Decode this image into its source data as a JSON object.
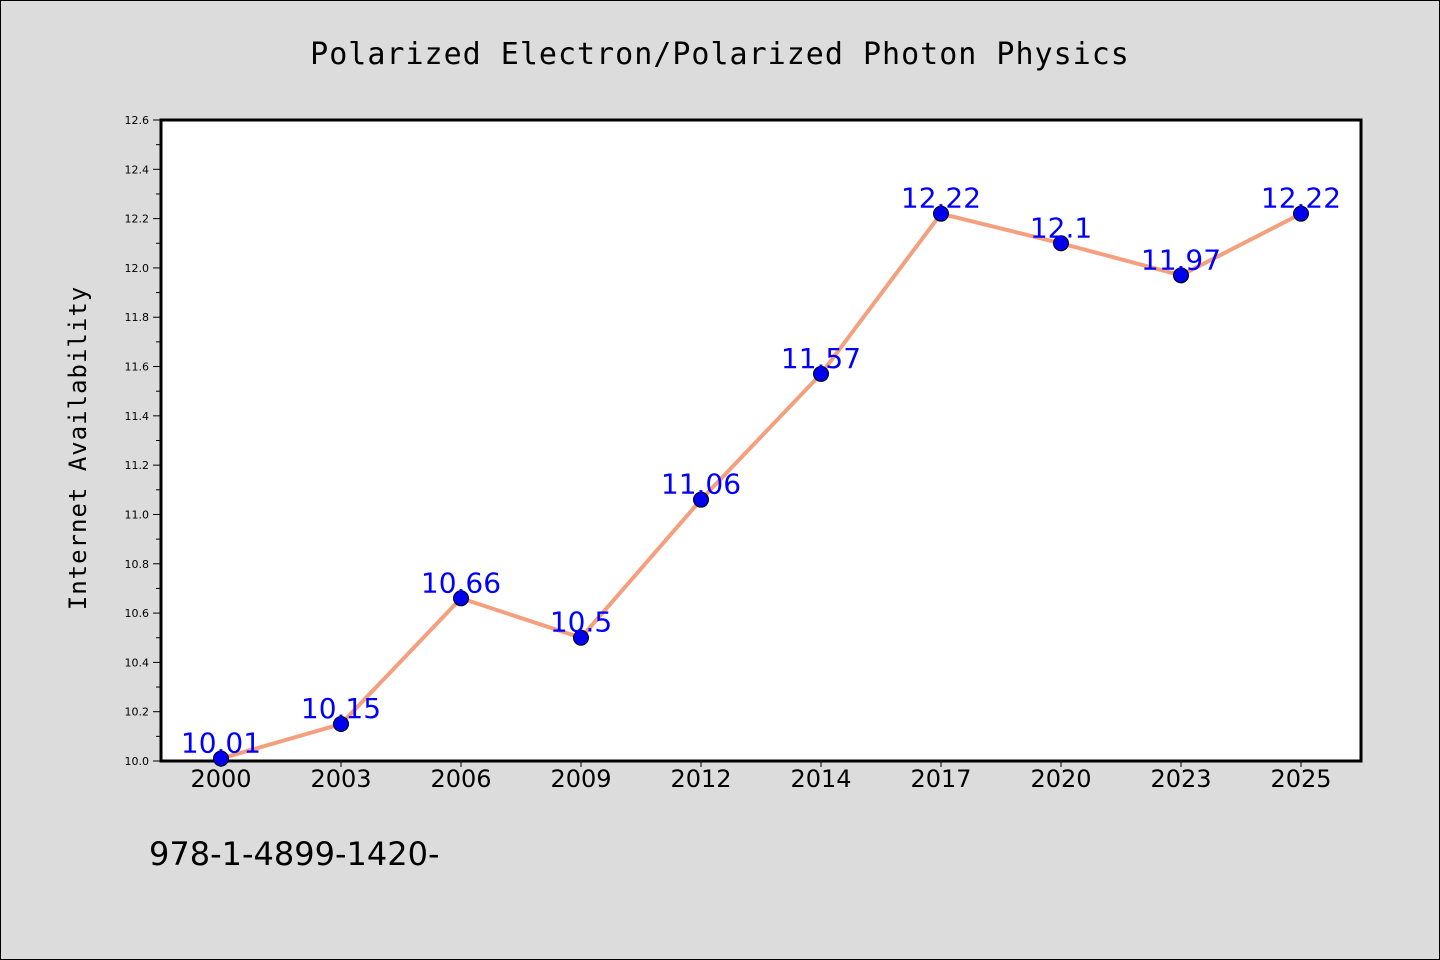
{
  "chart_data": {
    "type": "line",
    "title": "Polarized Electron/Polarized Photon Physics",
    "xlabel": "",
    "ylabel": "Internet Availability",
    "categories": [
      "2000",
      "2003",
      "2006",
      "2009",
      "2012",
      "2014",
      "2017",
      "2020",
      "2023",
      "2025"
    ],
    "values": [
      10.01,
      10.15,
      10.66,
      10.5,
      11.06,
      11.57,
      12.22,
      12.1,
      11.97,
      12.22
    ],
    "data_labels": [
      "10.01",
      "10.15",
      "10.66",
      "10.5",
      "11.06",
      "11.57",
      "12.22",
      "12.1",
      "11.97",
      "12.22"
    ],
    "ylim": [
      10.0,
      12.6
    ],
    "yticks": [
      "10.0",
      "10.2",
      "10.4",
      "10.6",
      "10.8",
      "11.0",
      "11.2",
      "11.4",
      "11.6",
      "11.8",
      "12.0",
      "12.2",
      "12.4",
      "12.6"
    ],
    "grid": false,
    "legend": "none",
    "colors": {
      "line": "#f4a07f",
      "marker": "#0000ee",
      "label": "#0000ff",
      "background": "#dcdcdc",
      "plot_area": "#ffffff"
    }
  },
  "footer_text": "978-1-4899-1420-"
}
